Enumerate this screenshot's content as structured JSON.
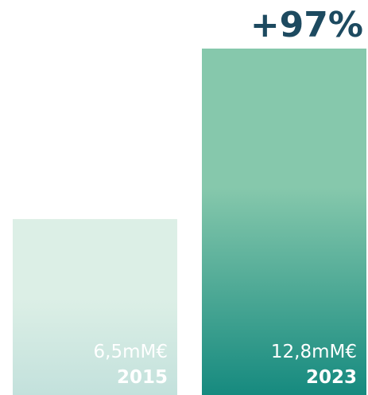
{
  "chart_data": {
    "type": "bar",
    "categories": [
      "2015",
      "2023"
    ],
    "values": [
      6.5,
      12.8
    ],
    "value_labels": [
      "6,5mM€",
      "12,8mM€"
    ],
    "annotation": "+97%",
    "title": "",
    "xlabel": "",
    "ylabel": "",
    "ylim": [
      0,
      14
    ],
    "grid": false,
    "legend": "none"
  },
  "colors": {
    "bar_2015_top": "#dcefe6",
    "bar_2015_bottom": "#c3e1dc",
    "bar_2023_top": "#86c8ac",
    "bar_2023_bottom": "#168a7f",
    "annotation": "#1d4a60",
    "bar_text": "#ffffff"
  }
}
